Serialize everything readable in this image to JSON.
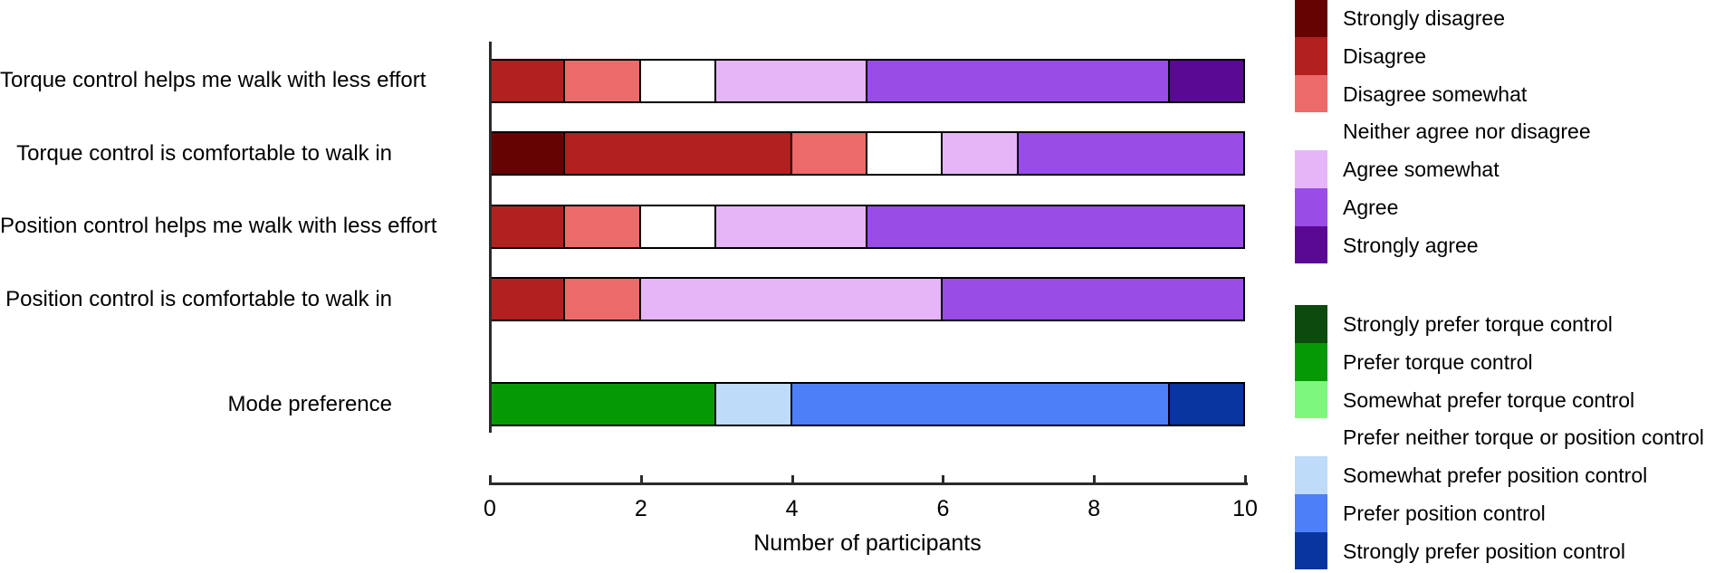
{
  "chart_data": {
    "type": "bar",
    "orientation": "horizontal",
    "stacked": true,
    "grid": false,
    "xlabel": "Number of participants",
    "xlim": [
      0,
      10
    ],
    "xticks": [
      0,
      2,
      4,
      6,
      8,
      10
    ],
    "categories": [
      "Torque control helps me walk with less effort",
      "Torque control is comfortable to walk in",
      "Position control helps me walk with less effort",
      "Position control is comfortable to walk in",
      "Mode preference"
    ],
    "likert_legend": [
      {
        "label": "Strongly disagree",
        "color": "#650303"
      },
      {
        "label": "Disagree",
        "color": "#b22020"
      },
      {
        "label": "Disagree somewhat",
        "color": "#ed6a6a"
      },
      {
        "label": "Neither agree nor disagree",
        "color": "#ffffff"
      },
      {
        "label": "Agree somewhat",
        "color": "#e6b5f8"
      },
      {
        "label": "Agree",
        "color": "#9a4ce6"
      },
      {
        "label": "Strongly agree",
        "color": "#5a0994"
      }
    ],
    "preference_legend": [
      {
        "label": "Strongly prefer torque control",
        "color": "#0d4a0d"
      },
      {
        "label": "Prefer torque control",
        "color": "#069906"
      },
      {
        "label": "Somewhat prefer torque control",
        "color": "#7ef77e"
      },
      {
        "label": "Prefer neither torque or position control",
        "color": "#ffffff"
      },
      {
        "label": "Somewhat prefer position control",
        "color": "#bedcf9"
      },
      {
        "label": "Prefer position control",
        "color": "#4d80f8"
      },
      {
        "label": "Strongly prefer position control",
        "color": "#08359f"
      }
    ],
    "bars": [
      {
        "category": "Torque control helps me walk with less effort",
        "segments": [
          {
            "label": "Disagree",
            "value": 1
          },
          {
            "label": "Disagree somewhat",
            "value": 1
          },
          {
            "label": "Neither agree nor disagree",
            "value": 1
          },
          {
            "label": "Agree somewhat",
            "value": 2
          },
          {
            "label": "Agree",
            "value": 4
          },
          {
            "label": "Strongly agree",
            "value": 1
          }
        ]
      },
      {
        "category": "Torque control is comfortable to walk in",
        "segments": [
          {
            "label": "Strongly disagree",
            "value": 1
          },
          {
            "label": "Disagree",
            "value": 3
          },
          {
            "label": "Disagree somewhat",
            "value": 1
          },
          {
            "label": "Neither agree nor disagree",
            "value": 1
          },
          {
            "label": "Agree somewhat",
            "value": 1
          },
          {
            "label": "Agree",
            "value": 3
          }
        ]
      },
      {
        "category": "Position control helps me walk with less effort",
        "segments": [
          {
            "label": "Disagree",
            "value": 1
          },
          {
            "label": "Disagree somewhat",
            "value": 1
          },
          {
            "label": "Neither agree nor disagree",
            "value": 1
          },
          {
            "label": "Agree somewhat",
            "value": 2
          },
          {
            "label": "Agree",
            "value": 5
          }
        ]
      },
      {
        "category": "Position control is comfortable to walk in",
        "segments": [
          {
            "label": "Disagree",
            "value": 1
          },
          {
            "label": "Disagree somewhat",
            "value": 1
          },
          {
            "label": "Agree somewhat",
            "value": 4
          },
          {
            "label": "Agree",
            "value": 4
          }
        ]
      },
      {
        "category": "Mode preference",
        "segments": [
          {
            "label": "Prefer torque control",
            "value": 3
          },
          {
            "label": "Somewhat prefer position control",
            "value": 1
          },
          {
            "label": "Prefer position control",
            "value": 5
          },
          {
            "label": "Strongly prefer position control",
            "value": 1
          }
        ]
      }
    ]
  }
}
